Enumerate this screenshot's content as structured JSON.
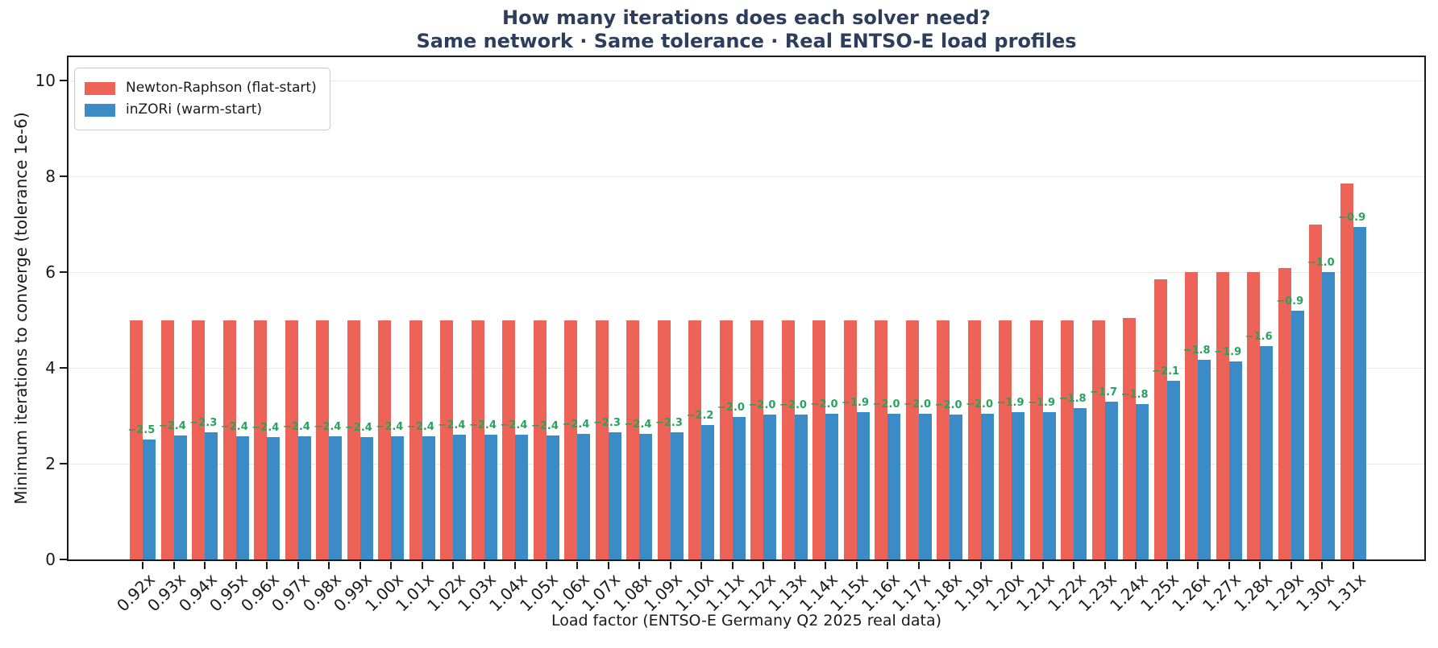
{
  "title": {
    "line1": "How many iterations does each solver need?",
    "line2": "Same network · Same tolerance · Real ENTSO-E load profiles"
  },
  "chart_data": {
    "type": "bar",
    "title": "How many iterations does each solver need?",
    "subtitle": "Same network · Same tolerance · Real ENTSO-E load profiles",
    "xlabel": "Load factor (ENTSO-E Germany Q2 2025 real data)",
    "ylabel": "Minimum iterations to converge (tolerance 1e-6)",
    "ylim": [
      0,
      10.5
    ],
    "yticks": [
      0,
      2,
      4,
      6,
      8,
      10
    ],
    "grid": "horizontal",
    "legend_position": "upper-left",
    "categories": [
      "0.92x",
      "0.93x",
      "0.94x",
      "0.95x",
      "0.96x",
      "0.97x",
      "0.98x",
      "0.99x",
      "1.00x",
      "1.01x",
      "1.02x",
      "1.03x",
      "1.04x",
      "1.05x",
      "1.06x",
      "1.07x",
      "1.08x",
      "1.09x",
      "1.10x",
      "1.11x",
      "1.12x",
      "1.13x",
      "1.14x",
      "1.15x",
      "1.16x",
      "1.17x",
      "1.18x",
      "1.19x",
      "1.20x",
      "1.21x",
      "1.22x",
      "1.23x",
      "1.24x",
      "1.25x",
      "1.26x",
      "1.27x",
      "1.28x",
      "1.29x",
      "1.30x",
      "1.31x"
    ],
    "series": [
      {
        "name": "Newton-Raphson (flat-start)",
        "color": "#ED6357",
        "values": [
          5.0,
          5.0,
          5.0,
          5.0,
          5.0,
          5.0,
          5.0,
          5.0,
          5.0,
          5.0,
          5.0,
          5.0,
          5.0,
          5.0,
          5.0,
          5.0,
          5.0,
          5.0,
          5.0,
          5.0,
          5.0,
          5.0,
          5.0,
          5.0,
          5.0,
          5.0,
          5.0,
          5.0,
          5.0,
          5.0,
          5.0,
          5.0,
          5.05,
          5.85,
          6.0,
          6.0,
          6.0,
          6.08,
          7.0,
          7.85
        ]
      },
      {
        "name": "inZORi (warm-start)",
        "color": "#3B8BC7",
        "values": [
          2.5,
          2.59,
          2.66,
          2.57,
          2.55,
          2.58,
          2.57,
          2.56,
          2.57,
          2.58,
          2.61,
          2.6,
          2.61,
          2.59,
          2.62,
          2.66,
          2.63,
          2.66,
          2.8,
          2.98,
          3.02,
          3.03,
          3.05,
          3.07,
          3.04,
          3.05,
          3.02,
          3.04,
          3.07,
          3.08,
          3.16,
          3.3,
          3.24,
          3.73,
          4.17,
          4.13,
          4.45,
          5.2,
          6.0,
          6.95
        ]
      }
    ],
    "delta_labels": {
      "color": "#28A25C",
      "values": [
        "−2.5",
        "−2.4",
        "−2.3",
        "−2.4",
        "−2.4",
        "−2.4",
        "−2.4",
        "−2.4",
        "−2.4",
        "−2.4",
        "−2.4",
        "−2.4",
        "−2.4",
        "−2.4",
        "−2.4",
        "−2.3",
        "−2.4",
        "−2.3",
        "−2.2",
        "−2.0",
        "−2.0",
        "−2.0",
        "−2.0",
        "−1.9",
        "−2.0",
        "−2.0",
        "−2.0",
        "−2.0",
        "−1.9",
        "−1.9",
        "−1.8",
        "−1.7",
        "−1.8",
        "−2.1",
        "−1.8",
        "−1.9",
        "−1.6",
        "−0.9",
        "−1.0",
        "−0.9"
      ]
    }
  },
  "colors": {
    "title": "#2c3e5c",
    "newton_raphson": "#ED6357",
    "inzori": "#3B8BC7",
    "delta_text": "#28A25C",
    "gridline": "#e9e9e9",
    "spine": "#1a1a1a"
  }
}
